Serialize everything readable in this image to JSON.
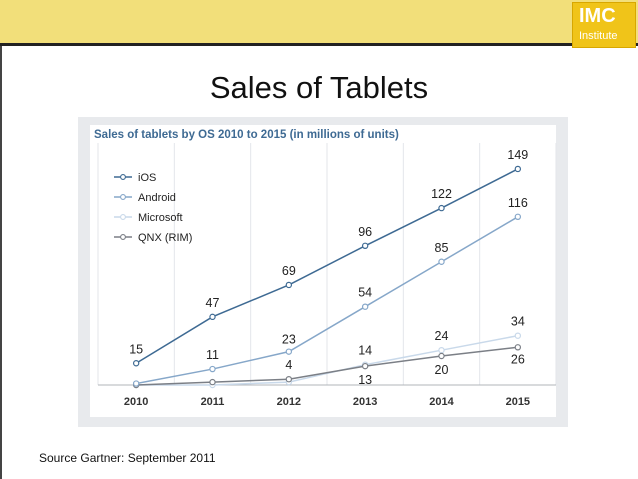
{
  "slide": {
    "title": "Sales of Tablets",
    "source": "Source Gartner:  September 2011",
    "logo": {
      "mark": "IMC",
      "sub": "Institute"
    }
  },
  "colors": {
    "topbar": "#f2df7a",
    "logo": "#f0c419",
    "ios": "#3e6a93",
    "android": "#86a7c9",
    "microsoft": "#c9d9ea",
    "qnx": "#7b7f86"
  },
  "chart_data": {
    "type": "line",
    "title": "Sales of tablets by OS 2010 to 2015 (in millions of units)",
    "categories": [
      "2010",
      "2011",
      "2012",
      "2013",
      "2014",
      "2015"
    ],
    "ylim": [
      0,
      160
    ],
    "grid": "vertical",
    "legend": "top-left",
    "series": [
      {
        "name": "iOS",
        "color": "#3e6a93",
        "values": [
          15,
          47,
          69,
          96,
          122,
          149
        ],
        "labels": [
          "15",
          "47",
          "69",
          "96",
          "122",
          "149"
        ]
      },
      {
        "name": "Android",
        "color": "#86a7c9",
        "values": [
          1,
          11,
          23,
          54,
          85,
          116
        ],
        "labels": [
          "",
          "11",
          "23",
          "54",
          "85",
          "116"
        ]
      },
      {
        "name": "Microsoft",
        "color": "#c9d9ea",
        "values": [
          0,
          0,
          2,
          14,
          24,
          34
        ],
        "labels": [
          "",
          "",
          "",
          "14",
          "24",
          "34"
        ]
      },
      {
        "name": "QNX (RIM)",
        "color": "#7b7f86",
        "values": [
          0,
          2,
          4,
          13,
          20,
          26
        ],
        "labels": [
          "",
          "",
          "4",
          "13",
          "20",
          "26"
        ]
      }
    ]
  }
}
